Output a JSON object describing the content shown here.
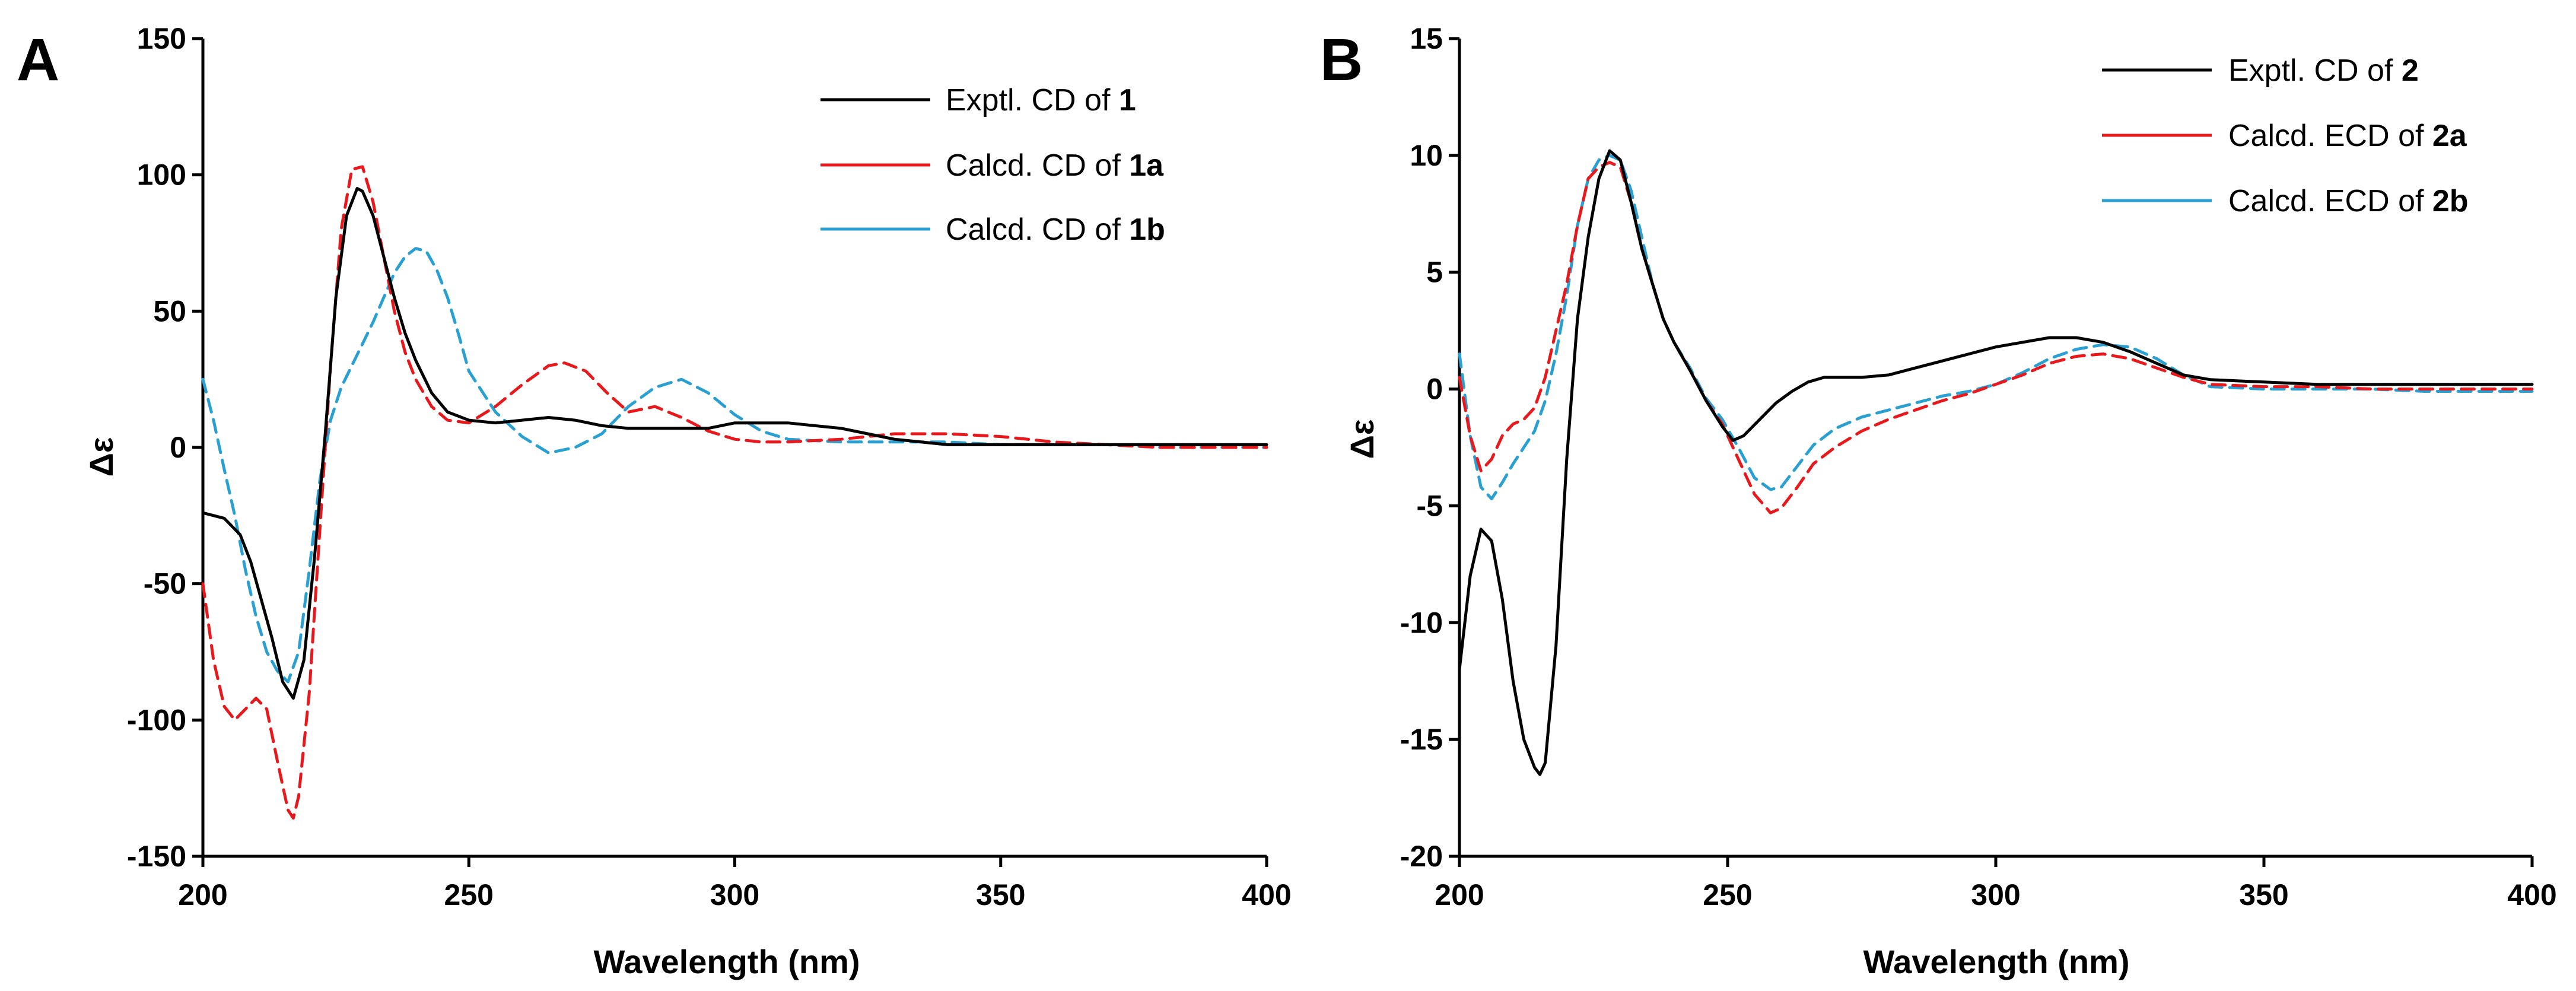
{
  "chart_data": [
    {
      "panel": "A",
      "type": "line",
      "title": "",
      "xlabel": "Wavelength (nm)",
      "ylabel": "Δε",
      "xlim": [
        200,
        400
      ],
      "ylim": [
        -150,
        150
      ],
      "xticks": [
        200,
        250,
        300,
        350,
        400
      ],
      "yticks": [
        -150,
        -100,
        -50,
        0,
        50,
        100,
        150
      ],
      "grid": false,
      "legend": "top-right",
      "series": [
        {
          "name": "Exptl. CD of 1",
          "label_prefix": "Exptl. CD of ",
          "label_compound": "1",
          "color": "#000000",
          "dash": "solid",
          "x": [
            200,
            204,
            207,
            209,
            211,
            213,
            215,
            217,
            219,
            221,
            223,
            225,
            227,
            229,
            230,
            232,
            234,
            236,
            238,
            240,
            243,
            246,
            250,
            255,
            260,
            265,
            270,
            275,
            280,
            285,
            290,
            295,
            300,
            305,
            310,
            315,
            320,
            325,
            330,
            340,
            350,
            360,
            370,
            380,
            390,
            400
          ],
          "y": [
            -24,
            -26,
            -32,
            -42,
            -56,
            -70,
            -86,
            -92,
            -78,
            -40,
            5,
            55,
            85,
            95,
            94,
            85,
            70,
            55,
            42,
            32,
            20,
            13,
            10,
            9,
            10,
            11,
            10,
            8,
            7,
            7,
            7,
            7,
            9,
            9,
            9,
            8,
            7,
            5,
            3,
            1,
            1,
            1,
            1,
            1,
            1,
            1
          ]
        },
        {
          "name": "Calcd. CD of 1a",
          "label_prefix": "Calcd. CD of ",
          "label_compound": "1a",
          "color": "#e8191d",
          "dash": "dashed",
          "x": [
            200,
            202,
            204,
            206,
            208,
            210,
            212,
            214,
            216,
            217,
            218,
            220,
            222,
            224,
            226,
            228,
            230,
            232,
            234,
            236,
            238,
            240,
            243,
            246,
            250,
            255,
            260,
            265,
            268,
            272,
            276,
            280,
            285,
            290,
            295,
            300,
            305,
            310,
            320,
            330,
            340,
            350,
            360,
            370,
            380,
            390,
            400
          ],
          "y": [
            -50,
            -78,
            -95,
            -100,
            -96,
            -92,
            -96,
            -115,
            -133,
            -136,
            -128,
            -90,
            -30,
            30,
            80,
            102,
            103,
            90,
            70,
            50,
            35,
            25,
            15,
            10,
            9,
            15,
            23,
            30,
            31,
            28,
            20,
            13,
            15,
            11,
            6,
            3,
            2,
            2,
            3,
            5,
            5,
            4,
            2,
            1,
            0,
            0,
            0
          ]
        },
        {
          "name": "Calcd. CD of 1b",
          "label_prefix": "Calcd. CD of ",
          "label_compound": "1b",
          "color": "#2aa0d2",
          "dash": "dashed",
          "x": [
            200,
            202,
            204,
            206,
            208,
            210,
            212,
            214,
            216,
            218,
            220,
            222,
            224,
            226,
            228,
            230,
            232,
            234,
            236,
            238,
            240,
            242,
            244,
            246,
            248,
            250,
            255,
            260,
            265,
            270,
            275,
            280,
            285,
            290,
            295,
            300,
            305,
            310,
            320,
            330,
            340,
            350,
            360,
            370,
            380,
            390,
            400
          ],
          "y": [
            25,
            10,
            -8,
            -25,
            -45,
            -62,
            -75,
            -82,
            -86,
            -75,
            -45,
            -12,
            10,
            22,
            30,
            38,
            46,
            55,
            64,
            70,
            73,
            72,
            65,
            55,
            42,
            28,
            13,
            4,
            -2,
            0,
            5,
            15,
            22,
            25,
            20,
            12,
            6,
            3,
            2,
            2,
            2,
            1,
            1,
            1,
            0,
            0,
            0
          ]
        }
      ]
    },
    {
      "panel": "B",
      "type": "line",
      "title": "",
      "xlabel": "Wavelength (nm)",
      "ylabel": "Δε",
      "xlim": [
        200,
        400
      ],
      "ylim": [
        -20,
        15
      ],
      "xticks": [
        200,
        250,
        300,
        350,
        400
      ],
      "yticks": [
        -20,
        -15,
        -10,
        -5,
        0,
        5,
        10,
        15
      ],
      "grid": false,
      "legend": "top-right",
      "series": [
        {
          "name": "Exptl. CD of 2",
          "label_prefix": "Exptl. CD of ",
          "label_compound": "2",
          "color": "#000000",
          "dash": "solid",
          "x": [
            200,
            202,
            204,
            206,
            208,
            210,
            212,
            214,
            215,
            216,
            218,
            220,
            222,
            224,
            226,
            228,
            230,
            232,
            234,
            236,
            238,
            240,
            243,
            246,
            249,
            251,
            253,
            256,
            259,
            262,
            265,
            268,
            271,
            275,
            280,
            285,
            290,
            295,
            300,
            305,
            310,
            315,
            320,
            325,
            330,
            335,
            340,
            350,
            360,
            370,
            380,
            390,
            400
          ],
          "y": [
            -12,
            -8,
            -6,
            -6.5,
            -9,
            -12.5,
            -15,
            -16.2,
            -16.5,
            -16,
            -11,
            -3,
            3,
            6.5,
            9,
            10.2,
            9.8,
            8,
            6,
            4.5,
            3,
            2,
            0.8,
            -0.5,
            -1.6,
            -2.2,
            -2,
            -1.3,
            -0.6,
            -0.1,
            0.3,
            0.5,
            0.5,
            0.5,
            0.6,
            0.9,
            1.2,
            1.5,
            1.8,
            2,
            2.2,
            2.2,
            2,
            1.6,
            1.1,
            0.6,
            0.4,
            0.3,
            0.2,
            0.2,
            0.2,
            0.2,
            0.2
          ]
        },
        {
          "name": "Calcd. ECD of 2a",
          "label_prefix": "Calcd. ECD of ",
          "label_compound": "2a",
          "color": "#e8191d",
          "dash": "dashed",
          "x": [
            200,
            202,
            204,
            206,
            208,
            210,
            212,
            214,
            216,
            218,
            220,
            222,
            224,
            226,
            228,
            230,
            232,
            234,
            236,
            238,
            240,
            243,
            246,
            249,
            252,
            255,
            258,
            260,
            263,
            266,
            270,
            275,
            280,
            285,
            290,
            295,
            300,
            305,
            310,
            315,
            320,
            325,
            330,
            335,
            340,
            350,
            360,
            370,
            380,
            390,
            400
          ],
          "y": [
            0.5,
            -2,
            -3.5,
            -3,
            -2,
            -1.5,
            -1.3,
            -0.8,
            0.5,
            2.5,
            4.5,
            7,
            9,
            9.5,
            9.7,
            9.5,
            8,
            6,
            4.5,
            3,
            2,
            0.8,
            -0.5,
            -1.5,
            -3,
            -4.5,
            -5.3,
            -5.1,
            -4.2,
            -3.2,
            -2.5,
            -1.8,
            -1.3,
            -0.9,
            -0.5,
            -0.2,
            0.2,
            0.6,
            1.1,
            1.4,
            1.5,
            1.3,
            0.9,
            0.5,
            0.2,
            0.1,
            0.1,
            0,
            0,
            0,
            0
          ]
        },
        {
          "name": "Calcd. ECD of 2b",
          "label_prefix": "Calcd. ECD of ",
          "label_compound": "2b",
          "color": "#2aa0d2",
          "dash": "dashed",
          "x": [
            200,
            202,
            204,
            206,
            208,
            210,
            212,
            214,
            216,
            218,
            220,
            222,
            224,
            226,
            228,
            230,
            232,
            234,
            236,
            238,
            240,
            243,
            246,
            249,
            252,
            255,
            258,
            260,
            263,
            266,
            270,
            275,
            280,
            285,
            290,
            295,
            300,
            305,
            310,
            315,
            320,
            325,
            330,
            335,
            340,
            350,
            360,
            370,
            380,
            390,
            400
          ],
          "y": [
            1.5,
            -2,
            -4.2,
            -4.7,
            -4,
            -3.2,
            -2.5,
            -1.8,
            -0.5,
            1.5,
            4,
            7,
            9,
            9.8,
            10,
            9.8,
            8.5,
            6.5,
            4.5,
            3,
            2,
            0.9,
            -0.4,
            -1.3,
            -2.5,
            -3.8,
            -4.3,
            -4.2,
            -3.3,
            -2.4,
            -1.7,
            -1.2,
            -0.9,
            -0.6,
            -0.3,
            -0.1,
            0.2,
            0.7,
            1.3,
            1.7,
            1.9,
            1.8,
            1.3,
            0.6,
            0.1,
            0,
            0,
            0,
            -0.1,
            -0.1,
            -0.1
          ]
        }
      ]
    }
  ]
}
